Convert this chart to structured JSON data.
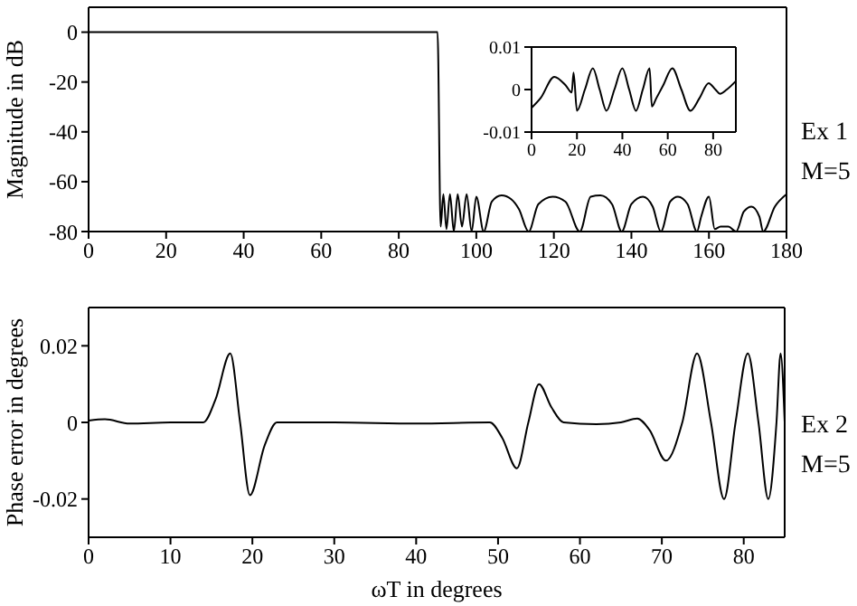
{
  "chart_data": [
    {
      "type": "line",
      "ylabel": "Magnitude in dB",
      "annotations": [
        "Ex 1",
        "M=5"
      ],
      "xlim": [
        0,
        180
      ],
      "xticks": [
        0,
        20,
        40,
        60,
        80,
        100,
        120,
        140,
        160,
        180
      ],
      "ylim": [
        -80,
        10
      ],
      "yticks": [
        -80,
        -60,
        -40,
        -20,
        0
      ],
      "x": [
        0,
        90,
        90.8,
        91.5,
        92.3,
        93.2,
        94.2,
        95.2,
        96.3,
        97.5,
        98.8,
        100,
        101.9,
        104,
        106.5,
        109,
        111,
        113.5,
        116,
        119.7,
        123,
        126.7,
        129.5,
        132,
        135,
        137.5,
        140,
        143,
        145.5,
        147.6,
        150,
        152,
        154.5,
        156.9,
        158,
        160,
        161.5,
        163,
        165,
        167,
        169,
        171,
        173,
        174,
        177,
        180
      ],
      "series": [
        {
          "color": "#000000",
          "values": [
            0,
            0,
            -78,
            -65,
            -79,
            -65,
            -80,
            -65,
            -78,
            -65,
            -80,
            -66,
            -80,
            -68,
            -65.5,
            -67,
            -71,
            -80,
            -69,
            -66,
            -68,
            -80,
            -66,
            -65.5,
            -69,
            -80,
            -69,
            -66,
            -70,
            -80,
            -68,
            -66,
            -69,
            -80,
            -74,
            -66,
            -79,
            -78,
            -78,
            -80,
            -72,
            -70,
            -74,
            -80,
            -70,
            -65
          ]
        }
      ]
    },
    {
      "type": "line",
      "xlim": [
        0,
        90
      ],
      "xticks": [
        0,
        20,
        40,
        60,
        80
      ],
      "ylim": [
        -0.01,
        0.01
      ],
      "yticks": [
        -0.01,
        0,
        0.01
      ],
      "x": [
        0,
        4,
        10,
        15,
        17.7,
        18.5,
        20,
        23.5,
        27,
        30,
        33,
        36.5,
        40,
        43,
        46,
        49,
        52,
        53,
        55,
        58,
        62,
        66,
        70,
        74,
        78,
        81,
        83,
        86,
        90
      ],
      "series": [
        {
          "color": "#000000",
          "values": [
            -0.0043,
            -0.002,
            0.003,
            0.001,
            -0.0007,
            0.004,
            -0.005,
            0,
            0.005,
            0,
            -0.005,
            0,
            0.005,
            0,
            -0.005,
            0,
            0.005,
            -0.004,
            -0.002,
            0.001,
            0.005,
            0,
            -0.005,
            -0.002,
            0.0015,
            0,
            -0.001,
            0,
            0.002
          ]
        }
      ]
    },
    {
      "type": "line",
      "xlabel": "ωT in degrees",
      "ylabel": "Phase error in degrees",
      "annotations": [
        "Ex 2",
        "M=5"
      ],
      "xlim": [
        0,
        85
      ],
      "xticks": [
        0,
        10,
        20,
        30,
        40,
        50,
        60,
        70,
        80
      ],
      "ylim": [
        -0.03,
        0.03
      ],
      "yticks": [
        -0.02,
        0,
        0.02
      ],
      "x": [
        0,
        2,
        5,
        10,
        14,
        15.5,
        17.3,
        18.5,
        19.7,
        21.5,
        23,
        30,
        40,
        49,
        50.5,
        52.3,
        53.7,
        55,
        56.5,
        58,
        62,
        65,
        67,
        68.5,
        70.5,
        72.5,
        74.3,
        76,
        77.6,
        79,
        80.5,
        81.8,
        83,
        84,
        84.5,
        85
      ],
      "series": [
        {
          "color": "#000000",
          "values": [
            0.0005,
            0.0008,
            -0.0003,
            0,
            0,
            0.006,
            0.018,
            0,
            -0.019,
            -0.006,
            0,
            0,
            -0.0003,
            0,
            -0.004,
            -0.012,
            0,
            0.01,
            0.004,
            0,
            -0.0005,
            0,
            0.001,
            -0.002,
            -0.01,
            0,
            0.018,
            0,
            -0.02,
            0,
            0.018,
            0,
            -0.02,
            0,
            0.018,
            0
          ]
        }
      ]
    }
  ]
}
